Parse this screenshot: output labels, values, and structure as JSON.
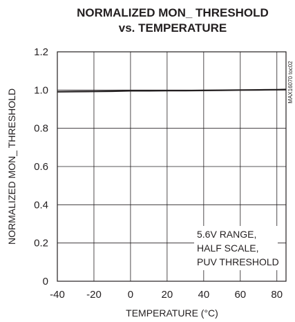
{
  "chart_data": {
    "type": "line",
    "title": [
      "NORMALIZED MON_ THRESHOLD",
      "vs. TEMPERATURE"
    ],
    "xlabel": "TEMPERATURE (°C)",
    "ylabel": "NORMALIZED MON_ THRESHOLD",
    "xlim": [
      -40,
      85
    ],
    "ylim": [
      0,
      1.2
    ],
    "xticks": [
      -40,
      -20,
      0,
      20,
      40,
      60,
      80
    ],
    "xtick_labels": [
      "-40",
      "-20",
      "0",
      "20",
      "40",
      "60",
      "80"
    ],
    "yticks": [
      0,
      0.2,
      0.4,
      0.6,
      0.8,
      1.0,
      1.2
    ],
    "ytick_labels": [
      "0",
      "0.2",
      "0.4",
      "0.6",
      "0.8",
      "1.0",
      "1.2"
    ],
    "grid": true,
    "annotation": [
      "5.6V RANGE,",
      "HALF SCALE,",
      "PUV THRESHOLD"
    ],
    "watermark": "MAX16070 toc02",
    "series": [
      {
        "x": [
          -40,
          -30,
          -20,
          -10,
          0,
          10,
          20,
          30,
          40,
          50,
          60,
          70,
          80,
          85
        ],
        "y": [
          0.991,
          0.992,
          0.993,
          0.994,
          0.996,
          0.996,
          0.997,
          0.997,
          0.998,
          0.999,
          1.0,
          1.001,
          1.002,
          1.003
        ]
      }
    ]
  }
}
